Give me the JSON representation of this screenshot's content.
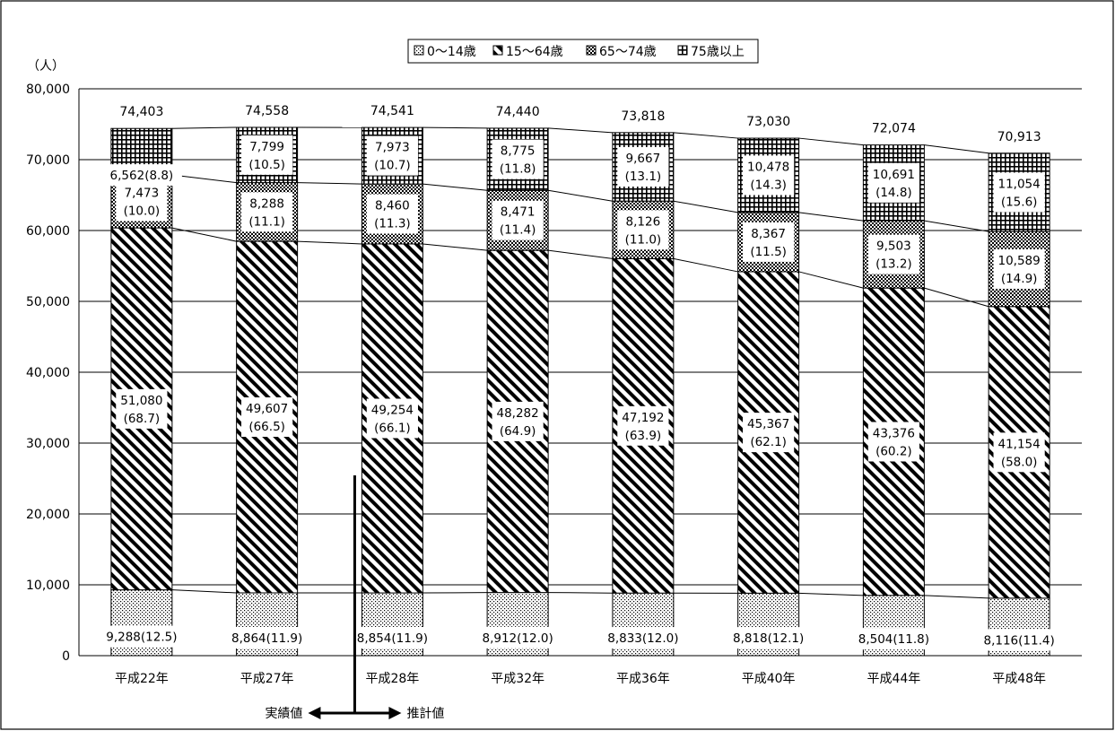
{
  "chart_data": {
    "type": "bar",
    "stacked": true,
    "ylabel": "（人）",
    "ylim": [
      0,
      80000
    ],
    "yticks": [
      "0",
      "10,000",
      "20,000",
      "30,000",
      "40,000",
      "50,000",
      "60,000",
      "70,000",
      "80,000"
    ],
    "categories": [
      "平成22年",
      "平成27年",
      "平成28年",
      "平成32年",
      "平成36年",
      "平成40年",
      "平成44年",
      "平成48年"
    ],
    "series": [
      {
        "name": "0～14歳",
        "values": [
          9288,
          8864,
          8854,
          8912,
          8833,
          8818,
          8504,
          8116
        ],
        "labels": [
          "9,288(12.5)",
          "8,864(11.9)",
          "8,854(11.9)",
          "8,912(12.0)",
          "8,833(12.0)",
          "8,818(12.1)",
          "8,504(11.8)",
          "8,116(11.4)"
        ]
      },
      {
        "name": "15～64歳",
        "values": [
          51080,
          49607,
          49254,
          48282,
          47192,
          45367,
          43376,
          41154
        ],
        "labels": [
          [
            "51,080",
            "(68.7)"
          ],
          [
            "49,607",
            "(66.5)"
          ],
          [
            "49,254",
            "(66.1)"
          ],
          [
            "48,282",
            "(64.9)"
          ],
          [
            "47,192",
            "(63.9)"
          ],
          [
            "45,367",
            "(62.1)"
          ],
          [
            "43,376",
            "(60.2)"
          ],
          [
            "41,154",
            "(58.0)"
          ]
        ]
      },
      {
        "name": "65～74歳",
        "values": [
          7473,
          8288,
          8460,
          8471,
          8126,
          8367,
          9503,
          10589
        ],
        "labels": [
          [
            "7,473",
            "(10.0)"
          ],
          [
            "8,288",
            "(11.1)"
          ],
          [
            "8,460",
            "(11.3)"
          ],
          [
            "8,471",
            "(11.4)"
          ],
          [
            "8,126",
            "(11.0)"
          ],
          [
            "8,367",
            "(11.5)"
          ],
          [
            "9,503",
            "(13.2)"
          ],
          [
            "10,589",
            "(14.9)"
          ]
        ]
      },
      {
        "name": "75歳以上",
        "values": [
          6562,
          7799,
          7973,
          8775,
          9667,
          10478,
          10691,
          11054
        ],
        "labels": [
          [
            "6,562(8.8)"
          ],
          [
            "7,799",
            "(10.5)"
          ],
          [
            "7,973",
            "(10.7)"
          ],
          [
            "8,775",
            "(11.8)"
          ],
          [
            "9,667",
            "(13.1)"
          ],
          [
            "10,478",
            "(14.3)"
          ],
          [
            "10,691",
            "(14.8)"
          ],
          [
            "11,054",
            "(15.6)"
          ]
        ]
      }
    ],
    "totals": [
      "74,403",
      "74,558",
      "74,541",
      "74,440",
      "73,818",
      "73,030",
      "72,074",
      "70,913"
    ],
    "legend_position": "top-center",
    "grid": true,
    "divider": {
      "left_label": "実績値",
      "right_label": "推計値",
      "after_category_index": 1
    }
  }
}
